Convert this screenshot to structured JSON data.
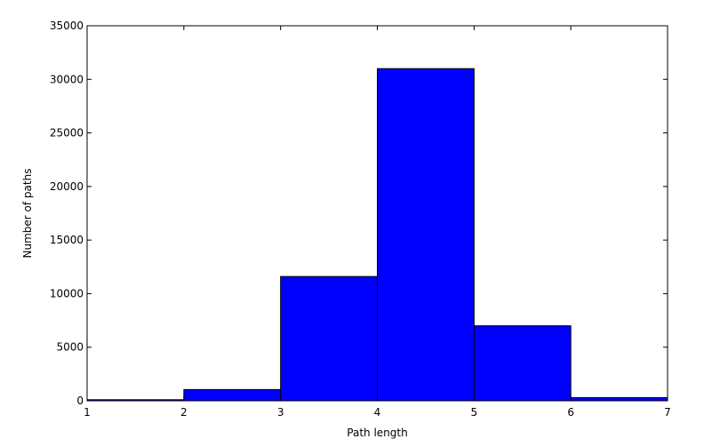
{
  "chart_data": {
    "type": "bar",
    "title": "",
    "xlabel": "Path length",
    "ylabel": "Number of paths",
    "xlim": [
      1,
      7
    ],
    "ylim": [
      0,
      35000
    ],
    "xticks": [
      "1",
      "2",
      "3",
      "4",
      "5",
      "6",
      "7"
    ],
    "yticks": [
      "0",
      "5000",
      "10000",
      "15000",
      "20000",
      "25000",
      "30000",
      "35000"
    ],
    "bins": [
      {
        "x0": 1,
        "x1": 2,
        "value": 100
      },
      {
        "x0": 2,
        "x1": 3,
        "value": 1050
      },
      {
        "x0": 3,
        "x1": 4,
        "value": 11600
      },
      {
        "x0": 4,
        "x1": 5,
        "value": 31000
      },
      {
        "x0": 5,
        "x1": 6,
        "value": 7000
      },
      {
        "x0": 6,
        "x1": 7,
        "value": 300
      }
    ],
    "bar_color": "#0000ff",
    "edge_color": "#000000",
    "grid": false,
    "legend": "none"
  }
}
